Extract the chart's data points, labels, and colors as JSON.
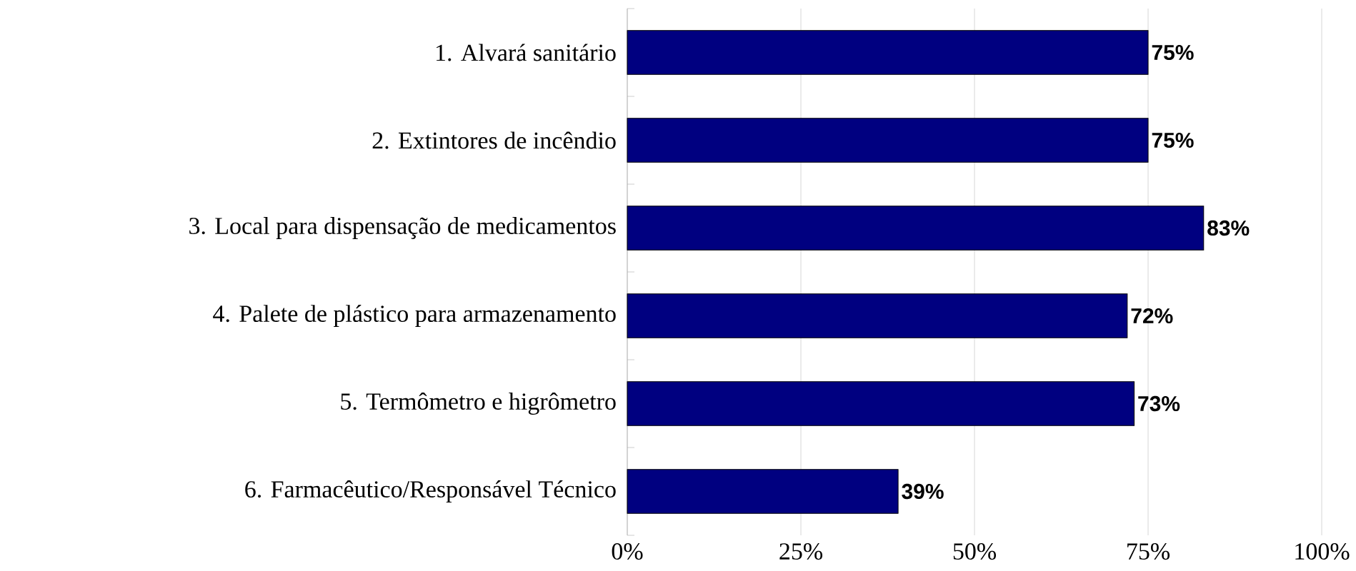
{
  "chart_data": {
    "type": "bar",
    "orientation": "horizontal",
    "categories": [
      "1. Alvará sanitário",
      "2. Extintores de incêndio",
      "3. Local para dispensação de medicamentos",
      "4. Palete de plástico para armazenamento",
      "5. Termômetro e higrômetro",
      "6. Farmacêutico/Responsável Técnico"
    ],
    "values": [
      75,
      75,
      83,
      72,
      73,
      39
    ],
    "value_labels": [
      "75%",
      "75%",
      "83%",
      "72%",
      "73%",
      "39%"
    ],
    "color": "#000080",
    "xlim": [
      0,
      100
    ],
    "xticks": [
      {
        "value": 0,
        "label": "0%"
      },
      {
        "value": 25,
        "label": "25%"
      },
      {
        "value": 50,
        "label": "50%"
      },
      {
        "value": 75,
        "label": "75%"
      },
      {
        "value": 100,
        "label": "100%"
      }
    ],
    "grid": "x"
  }
}
